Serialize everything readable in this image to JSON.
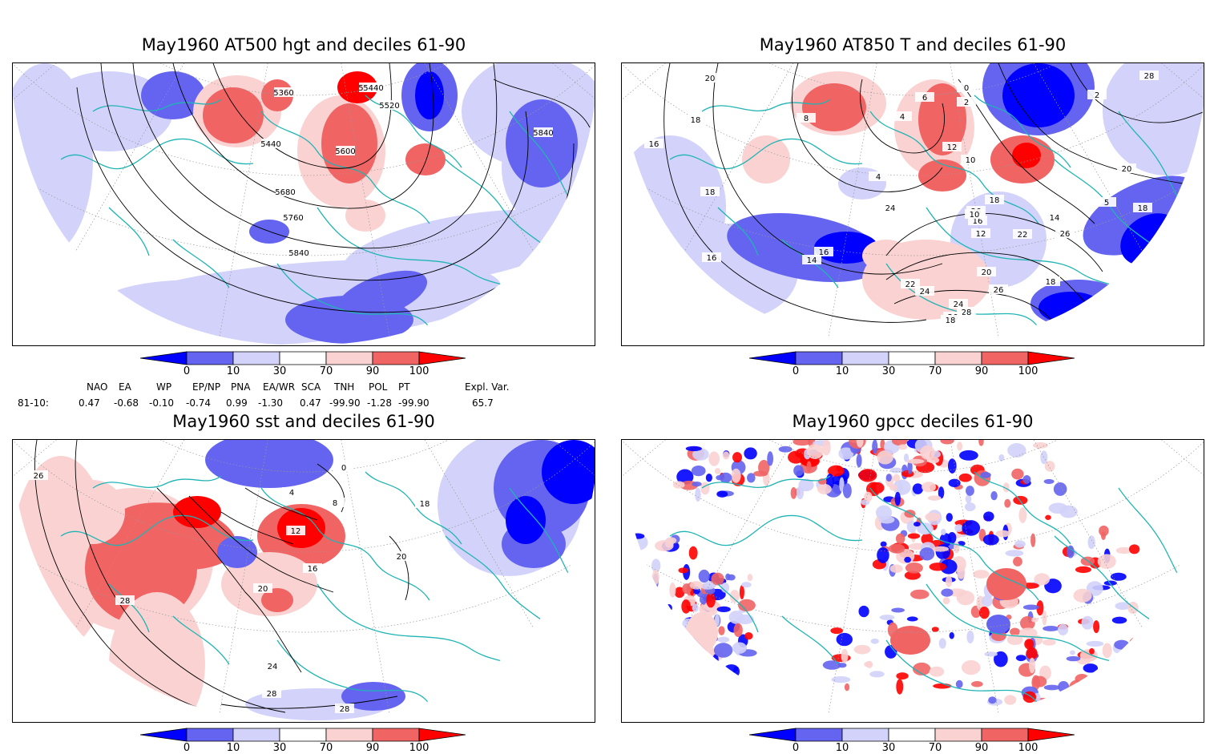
{
  "panels": [
    {
      "id": "p1",
      "title": "May1960 AT500 hgt and deciles 61-90",
      "contour_labels": [
        "5360",
        "5440",
        "5520",
        "5440",
        "5600",
        "5680",
        "5760",
        "5840",
        "5440",
        "5840"
      ]
    },
    {
      "id": "p2",
      "title": "May1960 AT850 T and deciles 61-90",
      "contour_labels": [
        "20",
        "18",
        "16",
        "18",
        "16",
        "8",
        "4",
        "4",
        "6",
        "2",
        "0",
        "12",
        "10",
        "2",
        "5",
        "26",
        "28",
        "18",
        "26",
        "24",
        "16",
        "14",
        "16",
        "10",
        "12",
        "14",
        "20",
        "18",
        "22",
        "24",
        "26",
        "28",
        "26",
        "24",
        "22",
        "20",
        "18",
        "20",
        "18"
      ]
    },
    {
      "id": "p3",
      "title": "May1960 sst and deciles 61-90",
      "contour_labels": [
        "26",
        "28",
        "0",
        "4",
        "8",
        "12",
        "16",
        "20",
        "24",
        "28",
        "28",
        "18",
        "20"
      ]
    },
    {
      "id": "p4",
      "title": "May1960 gpcc deciles 61-90",
      "contour_labels": []
    }
  ],
  "colorbar": {
    "labels": [
      "0",
      "10",
      "30",
      "70",
      "90",
      "100"
    ],
    "colors": {
      "dark_blue": "#0000ff",
      "mid_blue": "#6464f0",
      "light_blue": "#d2d2fa",
      "white": "#ffffff",
      "light_red": "#fad2d2",
      "mid_red": "#f06464",
      "dark_red": "#ff0000"
    }
  },
  "indices": {
    "headers": [
      "NAO",
      "EA",
      "WP",
      "EP/NP",
      "PNA",
      "EA/WR",
      "SCA",
      "TNH",
      "POL",
      "PT",
      "Expl. Var."
    ],
    "row_label": "81-10:",
    "values": [
      "0.47",
      "-0.68",
      "-0.10",
      "-0.74",
      "0.99",
      "-1.30",
      "0.47",
      "-99.90",
      "-1.28",
      "-99.90",
      "65.7"
    ]
  },
  "map_colors": {
    "coast": "#20b4b4",
    "contour": "#000000",
    "grid": "#999999"
  }
}
